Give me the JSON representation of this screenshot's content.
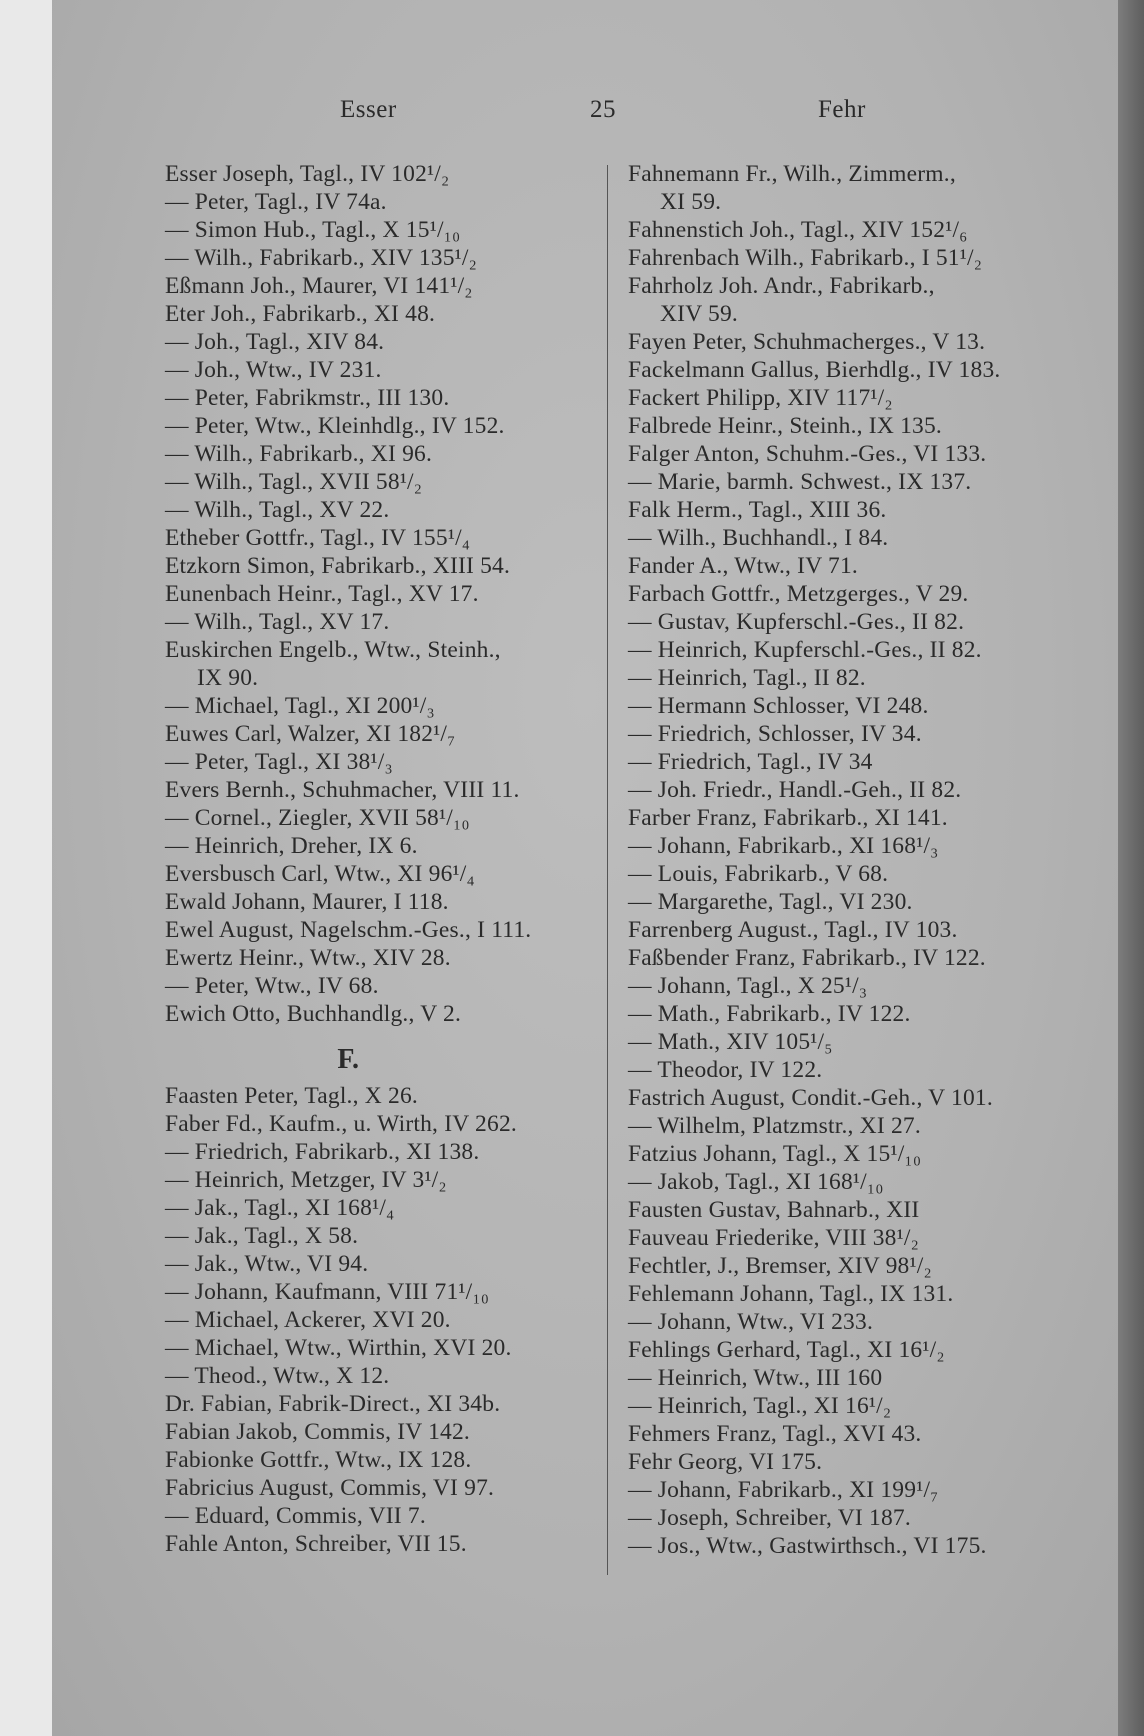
{
  "header": {
    "left": "Esser",
    "page_number": "25",
    "right": "Fehr"
  },
  "left_column": {
    "entries_a": [
      {
        "text": "Esser Joseph, Tagl., IV 102¹/₂"
      },
      {
        "text": "— Peter, Tagl., IV 74a."
      },
      {
        "text": "— Simon Hub., Tagl., X 15¹/₁₀"
      },
      {
        "text": "— Wilh., Fabrikarb., XIV 135¹/₂"
      },
      {
        "text": "Eßmann Joh., Maurer, VI 141¹/₂"
      },
      {
        "text": "Eter Joh., Fabrikarb., XI 48."
      },
      {
        "text": "— Joh., Tagl., XIV 84."
      },
      {
        "text": "— Joh., Wtw., IV 231."
      },
      {
        "text": "— Peter, Fabrikmstr., III 130."
      },
      {
        "text": "— Peter, Wtw., Kleinhdlg., IV 152."
      },
      {
        "text": "— Wilh., Fabrikarb., XI 96."
      },
      {
        "text": "— Wilh., Tagl., XVII 58¹/₂"
      },
      {
        "text": "— Wilh., Tagl., XV 22."
      },
      {
        "text": "Etheber Gottfr., Tagl., IV 155¹/₄"
      },
      {
        "text": "Etzkorn Simon, Fabrikarb., XIII 54."
      },
      {
        "text": "Eunenbach Heinr., Tagl., XV 17."
      },
      {
        "text": "— Wilh., Tagl., XV 17."
      },
      {
        "text": "Euskirchen Engelb., Wtw., Steinh.,"
      },
      {
        "text": "IX 90.",
        "cont": true
      },
      {
        "text": "— Michael, Tagl., XI 200¹/₃"
      },
      {
        "text": "Euwes Carl, Walzer, XI 182¹/₇"
      },
      {
        "text": "— Peter, Tagl., XI 38¹/₃"
      },
      {
        "text": "Evers Bernh., Schuhmacher, VIII 11."
      },
      {
        "text": "— Cornel., Ziegler, XVII 58¹/₁₀"
      },
      {
        "text": "— Heinrich, Dreher, IX 6."
      },
      {
        "text": "Eversbusch Carl, Wtw., XI 96¹/₄"
      },
      {
        "text": "Ewald Johann, Maurer, I 118."
      },
      {
        "text": "Ewel August, Nagelschm.-Ges., I 111."
      },
      {
        "text": "Ewertz Heinr., Wtw., XIV 28."
      },
      {
        "text": "— Peter, Wtw., IV 68."
      },
      {
        "text": "Ewich Otto, Buchhandlg., V 2."
      }
    ],
    "section_heading": "F.",
    "entries_b": [
      {
        "text": "Faasten Peter, Tagl., X 26."
      },
      {
        "text": "Faber Fd., Kaufm., u. Wirth, IV 262."
      },
      {
        "text": "— Friedrich, Fabrikarb., XI 138."
      },
      {
        "text": "— Heinrich, Metzger, IV 3¹/₂"
      },
      {
        "text": "— Jak., Tagl., XI 168¹/₄"
      },
      {
        "text": "— Jak., Tagl., X 58."
      },
      {
        "text": "— Jak., Wtw., VI 94."
      },
      {
        "text": "— Johann, Kaufmann, VIII 71¹/₁₀"
      },
      {
        "text": "— Michael, Ackerer, XVI 20."
      },
      {
        "text": "— Michael, Wtw., Wirthin, XVI 20."
      },
      {
        "text": "— Theod., Wtw., X 12."
      },
      {
        "text": "Dr. Fabian, Fabrik-Direct., XI 34b."
      },
      {
        "text": "Fabian Jakob, Commis, IV 142."
      },
      {
        "text": "Fabionke Gottfr., Wtw., IX 128."
      },
      {
        "text": "Fabricius August, Commis, VI 97."
      },
      {
        "text": "— Eduard, Commis, VII 7."
      },
      {
        "text": "Fahle Anton, Schreiber, VII 15."
      }
    ]
  },
  "right_column": {
    "entries": [
      {
        "text": "Fahnemann Fr., Wilh., Zimmerm.,"
      },
      {
        "text": "XI 59.",
        "cont": true
      },
      {
        "text": "Fahnenstich Joh., Tagl., XIV 152¹/₆"
      },
      {
        "text": "Fahrenbach Wilh., Fabrikarb., I 51¹/₂"
      },
      {
        "text": "Fahrholz Joh. Andr., Fabrikarb.,"
      },
      {
        "text": "XIV 59.",
        "cont": true
      },
      {
        "text": "Fayen Peter, Schuhmacherges., V 13."
      },
      {
        "text": "Fackelmann Gallus, Bierhdlg., IV 183."
      },
      {
        "text": "Fackert Philipp, XIV 117¹/₂"
      },
      {
        "text": "Falbrede Heinr., Steinh., IX 135."
      },
      {
        "text": "Falger Anton, Schuhm.-Ges., VI 133."
      },
      {
        "text": "— Marie, barmh. Schwest., IX 137."
      },
      {
        "text": "Falk Herm., Tagl., XIII 36."
      },
      {
        "text": "— Wilh., Buchhandl., I 84."
      },
      {
        "text": "Fander A., Wtw., IV 71."
      },
      {
        "text": "Farbach Gottfr., Metzgerges., V 29."
      },
      {
        "text": "— Gustav, Kupferschl.-Ges., II 82."
      },
      {
        "text": "— Heinrich, Kupferschl.-Ges., II 82."
      },
      {
        "text": "— Heinrich, Tagl., II 82."
      },
      {
        "text": "— Hermann Schlosser, VI 248."
      },
      {
        "text": "— Friedrich, Schlosser, IV 34."
      },
      {
        "text": "— Friedrich, Tagl., IV 34"
      },
      {
        "text": "— Joh. Friedr., Handl.-Geh., II 82."
      },
      {
        "text": "Farber Franz, Fabrikarb., XI 141."
      },
      {
        "text": "— Johann, Fabrikarb., XI 168¹/₃"
      },
      {
        "text": "— Louis, Fabrikarb., V 68."
      },
      {
        "text": "— Margarethe, Tagl., VI 230."
      },
      {
        "text": "Farrenberg August., Tagl., IV 103."
      },
      {
        "text": "Faßbender Franz, Fabrikarb., IV 122."
      },
      {
        "text": "— Johann, Tagl., X 25¹/₃"
      },
      {
        "text": "— Math., Fabrikarb., IV 122."
      },
      {
        "text": "— Math., XIV 105¹/₅"
      },
      {
        "text": "— Theodor, IV 122."
      },
      {
        "text": "Fastrich August, Condit.-Geh., V 101."
      },
      {
        "text": "— Wilhelm, Platzmstr., XI 27."
      },
      {
        "text": "Fatzius Johann, Tagl., X 15¹/₁₀"
      },
      {
        "text": "— Jakob, Tagl., XI 168¹/₁₀"
      },
      {
        "text": "Fausten Gustav, Bahnarb., XII"
      },
      {
        "text": "Fauveau Friederike, VIII 38¹/₂"
      },
      {
        "text": "Fechtler, J., Bremser, XIV 98¹/₂"
      },
      {
        "text": "Fehlemann Johann, Tagl., IX 131."
      },
      {
        "text": "— Johann, Wtw., VI 233."
      },
      {
        "text": "Fehlings Gerhard, Tagl., XI 16¹/₂"
      },
      {
        "text": "— Heinrich, Wtw., III 160"
      },
      {
        "text": "— Heinrich, Tagl., XI 16¹/₂"
      },
      {
        "text": "Fehmers Franz, Tagl., XVI 43."
      },
      {
        "text": "Fehr Georg, VI 175."
      },
      {
        "text": "— Johann, Fabrikarb., XI 199¹/₇"
      },
      {
        "text": "— Joseph, Schreiber, VI 187."
      },
      {
        "text": "— Jos., Wtw., Gastwirthsch., VI 175."
      }
    ]
  }
}
